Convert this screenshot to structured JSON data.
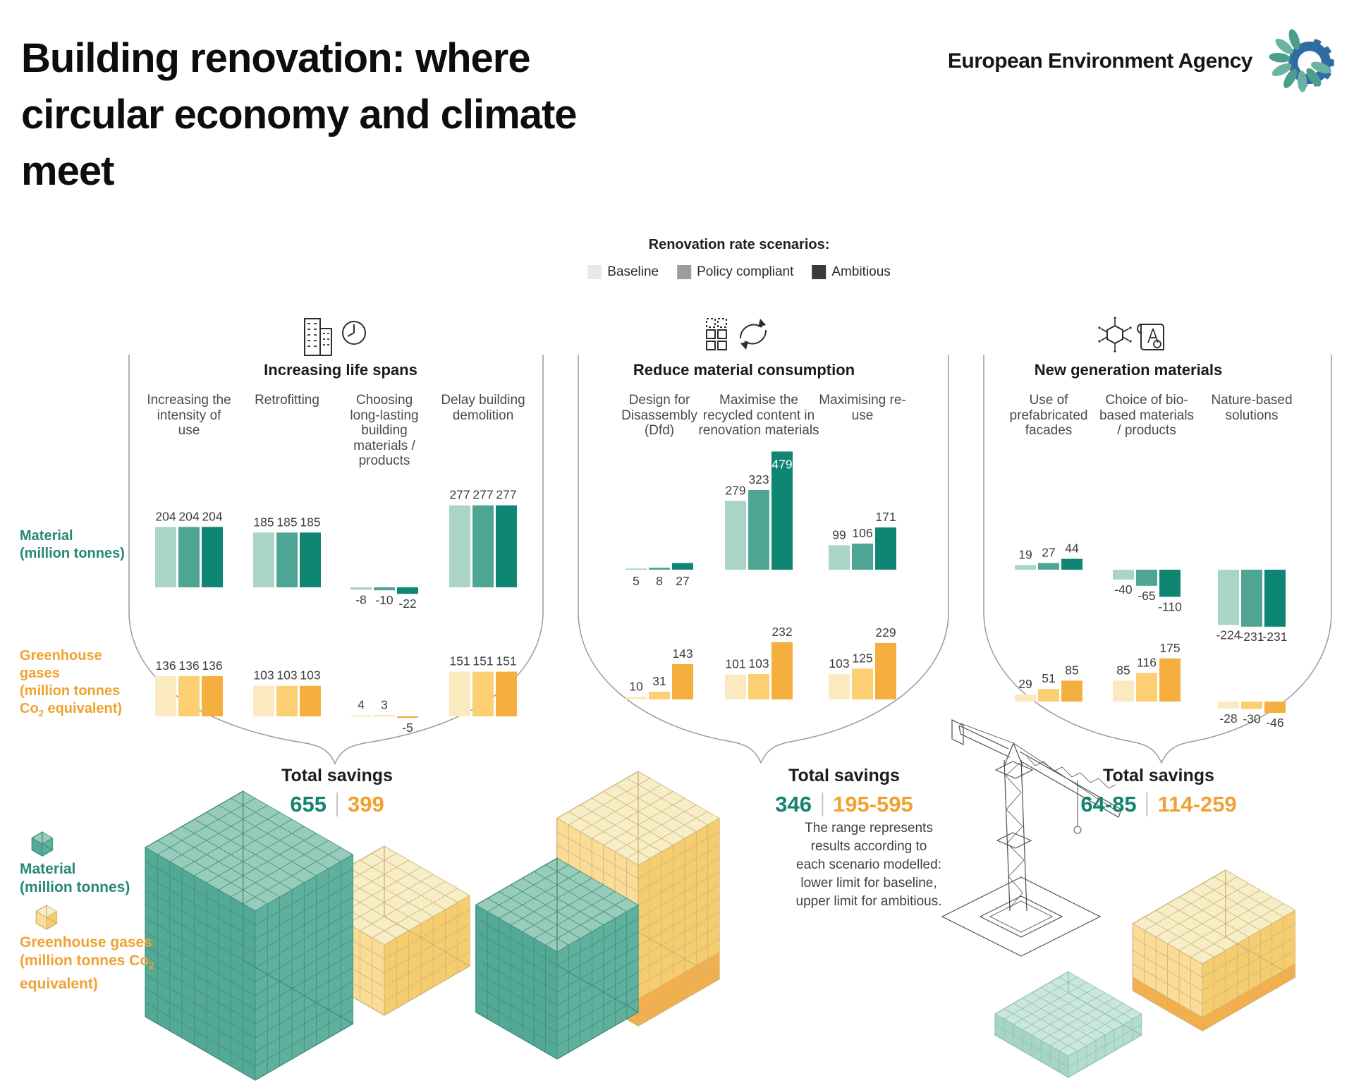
{
  "title": "Building renovation: where circular economy and climate meet",
  "logo": {
    "text": "European Environment Agency",
    "icon": "eea-flower-gear-icon"
  },
  "legend": {
    "title": "Renovation rate scenarios:",
    "items": [
      {
        "label": "Baseline",
        "color": "#E8E8E6"
      },
      {
        "label": "Policy compliant",
        "color": "#9C9C9C"
      },
      {
        "label": "Ambitious",
        "color": "#3A3A3A"
      }
    ]
  },
  "rows": {
    "material": {
      "label": "Material (million tonnes)",
      "color": "#258874"
    },
    "ghg": {
      "label": "Greenhouse gases (million tonnes Co2 equivalent)",
      "color": "#F0A231"
    }
  },
  "cube_legend": [
    {
      "label": "Material (million tonnes)",
      "color": "#258874",
      "cube": "teal"
    },
    {
      "label": "Greenhouse gases (million tonnes Co2 equivalent)",
      "color": "#F0A231",
      "cube": "yellow"
    }
  ],
  "total_savings_label": "Total savings",
  "chart_data": {
    "type": "bar",
    "scenarios": [
      "Baseline",
      "Policy compliant",
      "Ambitious"
    ],
    "units": {
      "material": "million tonnes",
      "ghg": "million tonnes Co2 equivalent"
    },
    "scenario_colors": {
      "material": [
        "#A9D4C6",
        "#4FA594",
        "#0F8574"
      ],
      "ghg": [
        "#FBE9C0",
        "#FBCF72",
        "#F5AF3E"
      ]
    },
    "groups": [
      {
        "name": "Increasing life spans",
        "icon": "buildings-clock-icon",
        "measures": [
          {
            "label": "Increasing the intensity of use",
            "material": [
              204,
              204,
              204
            ],
            "ghg": [
              136,
              136,
              136
            ]
          },
          {
            "label": "Retrofitting",
            "material": [
              185,
              185,
              185
            ],
            "ghg": [
              103,
              103,
              103
            ]
          },
          {
            "label": "Choosing long-lasting building materials / products",
            "material": [
              -8,
              -10,
              -22
            ],
            "ghg": [
              4,
              3,
              -5
            ]
          },
          {
            "label": "Delay building demolition",
            "material": [
              277,
              277,
              277
            ],
            "ghg": [
              151,
              151,
              151
            ]
          }
        ],
        "total_savings": {
          "material": "655",
          "ghg": "399"
        }
      },
      {
        "name": "Reduce material consumption",
        "icon": "recycle-materials-icon",
        "measures": [
          {
            "label": "Design for Disassembly (Dfd)",
            "material": [
              5,
              8,
              27
            ],
            "ghg": [
              10,
              31,
              143
            ]
          },
          {
            "label": "Maximise the recycled content in renovation materials",
            "material": [
              279,
              323,
              479
            ],
            "ghg": [
              101,
              103,
              232
            ]
          },
          {
            "label": "Maximising re-use",
            "material": [
              99,
              106,
              171
            ],
            "ghg": [
              103,
              125,
              229
            ]
          }
        ],
        "total_savings": {
          "material": "346",
          "ghg": "195-595"
        },
        "note": "The range represents results according to each scenario modelled: lower limit for baseline, upper limit for ambitious."
      },
      {
        "name": "New generation materials",
        "icon": "molecule-blueprint-icon",
        "measures": [
          {
            "label": "Use of prefabricated facades",
            "material": [
              19,
              27,
              44
            ],
            "ghg": [
              29,
              51,
              85
            ]
          },
          {
            "label": "Choice of bio-based materials / products",
            "material": [
              -40,
              -65,
              -110
            ],
            "ghg": [
              85,
              116,
              175
            ]
          },
          {
            "label": "Nature-based solutions",
            "material": [
              -224,
              -231,
              -231
            ],
            "ghg": [
              -28,
              -30,
              -46
            ]
          }
        ],
        "total_savings": {
          "material": "64-85",
          "ghg": "114-259"
        }
      }
    ]
  }
}
